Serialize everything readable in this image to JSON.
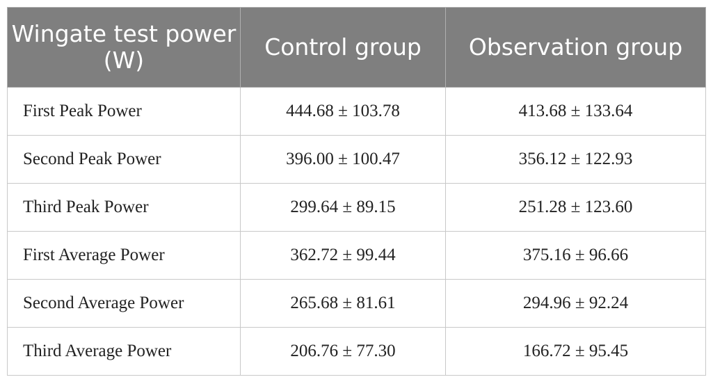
{
  "table": {
    "header": [
      "Wingate test power (W)",
      "Control group",
      "Observation group"
    ],
    "rows": [
      [
        "First Peak Power",
        "444.68 ± 103.78",
        "413.68 ± 133.64"
      ],
      [
        "Second Peak Power",
        "396.00 ± 100.47",
        "356.12 ± 122.93"
      ],
      [
        "Third Peak Power",
        "299.64 ± 89.15",
        "251.28 ± 123.60"
      ],
      [
        "First Average Power",
        "362.72 ± 99.44",
        "375.16 ± 96.66"
      ],
      [
        "Second Average Power",
        "265.68 ± 81.61",
        "294.96 ± 92.24"
      ],
      [
        "Third Average Power",
        "206.76 ± 77.30",
        "166.72 ± 95.45"
      ]
    ]
  }
}
